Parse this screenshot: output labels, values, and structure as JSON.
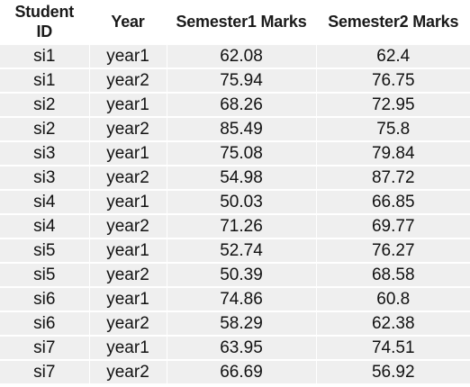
{
  "table": {
    "headers": [
      "Student\nID",
      "Year",
      "Semester1 Marks",
      "Semester2 Marks"
    ],
    "header_lines": [
      [
        "Student",
        "ID"
      ],
      [
        "Year"
      ],
      [
        "Semester1 Marks"
      ],
      [
        "Semester2 Marks"
      ]
    ],
    "rows": [
      [
        "si1",
        "year1",
        "62.08",
        "62.4"
      ],
      [
        "si1",
        "year2",
        "75.94",
        "76.75"
      ],
      [
        "si2",
        "year1",
        "68.26",
        "72.95"
      ],
      [
        "si2",
        "year2",
        "85.49",
        "75.8"
      ],
      [
        "si3",
        "year1",
        "75.08",
        "79.84"
      ],
      [
        "si3",
        "year2",
        "54.98",
        "87.72"
      ],
      [
        "si4",
        "year1",
        "50.03",
        "66.85"
      ],
      [
        "si4",
        "year2",
        "71.26",
        "69.77"
      ],
      [
        "si5",
        "year1",
        "52.74",
        "76.27"
      ],
      [
        "si5",
        "year2",
        "50.39",
        "68.58"
      ],
      [
        "si6",
        "year1",
        "74.86",
        "60.8"
      ],
      [
        "si6",
        "year2",
        "58.29",
        "62.38"
      ],
      [
        "si7",
        "year1",
        "63.95",
        "74.51"
      ],
      [
        "si7",
        "year2",
        "66.69",
        "56.92"
      ]
    ]
  },
  "colors": {
    "row_background": "#efefef",
    "header_background": "#ffffff",
    "text": "#111111"
  }
}
